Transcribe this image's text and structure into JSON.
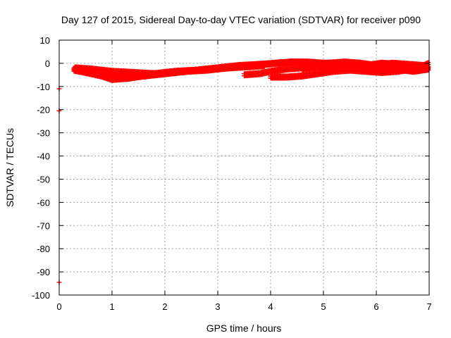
{
  "chart_data": {
    "type": "scatter",
    "title": "Day 127 of 2015, Sidereal Day-to-day VTEC variation (SDTVAR) for receiver p090",
    "xlabel": "GPS time / hours",
    "ylabel": "SDTVAR / TECUs",
    "xlim": [
      0,
      7
    ],
    "ylim": [
      -100,
      10
    ],
    "xticks": [
      "0",
      "1",
      "2",
      "3",
      "4",
      "5",
      "6",
      "7"
    ],
    "yticks": [
      "10",
      "0",
      "-10",
      "-20",
      "-30",
      "-40",
      "-50",
      "-60",
      "-70",
      "-80",
      "-90",
      "-100"
    ],
    "grid": true,
    "marker": "plus",
    "color": "#ff0000",
    "outliers": [
      {
        "x": 0.0,
        "y": -11
      },
      {
        "x": 0.0,
        "y": -20.5
      },
      {
        "x": 0.0,
        "y": -94.5
      }
    ],
    "bands": [
      {
        "x": [
          0.28,
          0.5,
          0.8,
          1.0,
          1.3,
          1.6,
          2.0,
          2.4,
          2.8,
          3.2,
          3.6,
          3.9
        ],
        "y": [
          -2.0,
          -2.5,
          -3.5,
          -4.5,
          -5.5,
          -5.0,
          -4.0,
          -3.0,
          -2.0,
          -1.5,
          -1.0,
          -0.5
        ]
      },
      {
        "x": [
          0.28,
          0.5,
          0.8,
          1.0,
          1.3,
          1.6,
          2.0,
          2.4,
          2.8,
          3.2,
          3.6,
          3.9
        ],
        "y": [
          -2.5,
          -3.5,
          -5.0,
          -6.5,
          -6.0,
          -5.0,
          -4.0,
          -3.0,
          -2.5,
          -1.5,
          -0.5,
          0.0
        ]
      },
      {
        "x": [
          0.3,
          0.6,
          1.0,
          1.4,
          1.8,
          2.2,
          2.6,
          3.0,
          3.4,
          3.8,
          4.1,
          4.4,
          4.7,
          5.0,
          5.3
        ],
        "y": [
          -1.5,
          -2.0,
          -3.0,
          -3.5,
          -4.0,
          -3.0,
          -2.5,
          -1.5,
          -0.5,
          0.0,
          0.5,
          1.0,
          1.0,
          0.5,
          0.0
        ]
      },
      {
        "x": [
          3.5,
          3.8,
          4.0,
          4.3,
          4.6,
          4.9,
          5.2,
          5.5,
          5.8,
          6.1,
          6.4,
          6.7,
          7.0
        ],
        "y": [
          -4.5,
          -4.0,
          -3.0,
          -2.0,
          -1.5,
          -1.0,
          -0.5,
          -1.0,
          -0.5,
          0.5,
          0.0,
          -1.0,
          -0.5
        ]
      },
      {
        "x": [
          3.6,
          3.9,
          4.1,
          4.4,
          4.7,
          5.0,
          5.3,
          5.6,
          5.9,
          6.2,
          6.5,
          6.8,
          7.0
        ],
        "y": [
          -1.0,
          0.0,
          0.5,
          1.0,
          0.5,
          0.0,
          -0.5,
          -1.5,
          -2.0,
          -1.5,
          -2.5,
          -2.5,
          -1.5
        ]
      },
      {
        "x": [
          4.0,
          4.3,
          4.6,
          4.9,
          5.2,
          5.5,
          5.8,
          6.1,
          6.4,
          6.7,
          7.0
        ],
        "y": [
          -5.5,
          -5.5,
          -5.0,
          -4.0,
          -3.0,
          -2.5,
          -3.0,
          -3.5,
          -3.0,
          -2.0,
          -0.5
        ]
      },
      {
        "x": [
          4.5,
          4.8,
          5.1,
          5.4,
          5.7,
          6.0,
          6.3,
          6.6,
          6.9,
          7.0
        ],
        "y": [
          1.0,
          0.5,
          0.5,
          1.0,
          0.5,
          -0.5,
          0.5,
          0.0,
          -0.5,
          0.5
        ]
      },
      {
        "x": [
          4.6,
          4.9,
          5.2,
          5.5,
          5.8,
          6.1,
          6.4,
          6.7,
          7.0
        ],
        "y": [
          -2.0,
          -1.0,
          -2.0,
          -1.5,
          -2.0,
          -2.5,
          -2.0,
          -3.0,
          -2.0
        ]
      }
    ]
  }
}
